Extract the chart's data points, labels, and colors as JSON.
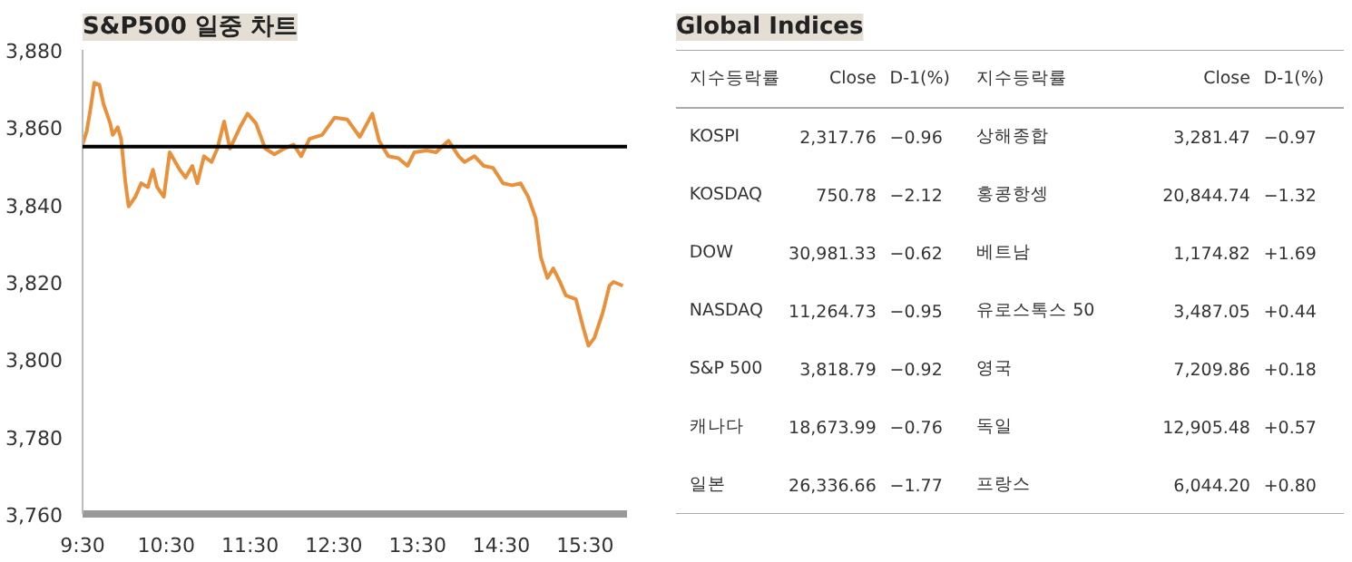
{
  "chart_data": [
    {
      "type": "line",
      "title": "S&P500 일중 차트",
      "xlim": [
        9.5,
        16.0
      ],
      "ylim": [
        3760,
        3880
      ],
      "xticks": [
        {
          "value": 9.5,
          "label": "9:30"
        },
        {
          "value": 10.5,
          "label": "10:30"
        },
        {
          "value": 11.5,
          "label": "11:30"
        },
        {
          "value": 12.5,
          "label": "12:30"
        },
        {
          "value": 13.5,
          "label": "13:30"
        },
        {
          "value": 14.5,
          "label": "14:30"
        },
        {
          "value": 15.5,
          "label": "15:30"
        }
      ],
      "yticks": [
        {
          "value": 3760,
          "label": "3,760"
        },
        {
          "value": 3780,
          "label": "3,780"
        },
        {
          "value": 3800,
          "label": "3,800"
        },
        {
          "value": 3820,
          "label": "3,820"
        },
        {
          "value": 3840,
          "label": "3,840"
        },
        {
          "value": 3860,
          "label": "3,860"
        },
        {
          "value": 3880,
          "label": "3,880"
        }
      ],
      "grid": false,
      "ref_lines": [
        {
          "axis": "y",
          "value": 3855,
          "color": "#000000"
        }
      ],
      "series": [
        {
          "color": "#e8913a",
          "x": [
            9.5,
            9.55,
            9.6,
            9.64,
            9.7,
            9.75,
            9.79,
            9.83,
            9.86,
            9.92,
            9.96,
            10.01,
            10.05,
            10.13,
            10.2,
            10.28,
            10.34,
            10.39,
            10.47,
            10.54,
            10.66,
            10.73,
            10.81,
            10.87,
            10.95,
            11.04,
            11.11,
            11.19,
            11.26,
            11.38,
            11.47,
            11.57,
            11.68,
            11.79,
            11.91,
            12.02,
            12.11,
            12.21,
            12.36,
            12.51,
            12.66,
            12.81,
            12.96,
            13.04,
            13.15,
            13.27,
            13.38,
            13.46,
            13.61,
            13.72,
            13.87,
            13.99,
            14.06,
            14.18,
            14.29,
            14.4,
            14.52,
            14.63,
            14.73,
            14.82,
            14.91,
            14.97,
            15.05,
            15.12,
            15.2,
            15.27,
            15.39,
            15.48,
            15.54,
            15.61,
            15.71,
            15.79,
            15.84,
            15.95
          ],
          "values": [
            3855.5,
            3859,
            3865.5,
            3871.5,
            3871,
            3866,
            3863.5,
            3861,
            3858,
            3860,
            3857,
            3846,
            3839.5,
            3842,
            3845.5,
            3844.5,
            3849,
            3844.5,
            3842,
            3853.5,
            3849,
            3847,
            3850,
            3845.5,
            3852.5,
            3851,
            3854.5,
            3861.5,
            3854.5,
            3860,
            3863.5,
            3861,
            3854.5,
            3853,
            3854.5,
            3855.5,
            3852.5,
            3857,
            3858,
            3862.5,
            3862,
            3857.5,
            3863.5,
            3856.5,
            3852.5,
            3852,
            3850,
            3853.5,
            3854,
            3853.5,
            3856.5,
            3852.5,
            3851,
            3852.5,
            3850,
            3849.5,
            3845.5,
            3845,
            3845.5,
            3842,
            3836.5,
            3826.5,
            3821,
            3823.5,
            3820,
            3816.5,
            3815.5,
            3808,
            3803.5,
            3805.5,
            3812,
            3819,
            3820,
            3819
          ]
        }
      ]
    },
    {
      "type": "other",
      "title": "Global Indices",
      "annotations": [
        "지수등락률",
        "Close",
        "D-1(%)",
        "지수등락률",
        "Close",
        "D-1(%)",
        "KOSPI",
        "2,317.76",
        "−0.96",
        "상해종합",
        "3,281.47",
        "−0.97",
        "KOSDAQ",
        "750.78",
        "−2.12",
        "홍콩항셍",
        "20,844.74",
        "−1.32",
        "DOW",
        "30,981.33",
        "−0.62",
        "베트남",
        "1,174.82",
        "+1.69",
        "NASDAQ",
        "11,264.73",
        "−0.95",
        "유로스톡스 50",
        "3,487.05",
        "+0.44",
        "S&P 500",
        "3,818.79",
        "−0.92",
        "영국",
        "7,209.86",
        "+0.18",
        "캐나다",
        "18,673.99",
        "−0.76",
        "독일",
        "12,905.48",
        "+0.57",
        "일본",
        "26,336.66",
        "−1.77",
        "프랑스",
        "6,044.20",
        "+0.80"
      ]
    }
  ]
}
